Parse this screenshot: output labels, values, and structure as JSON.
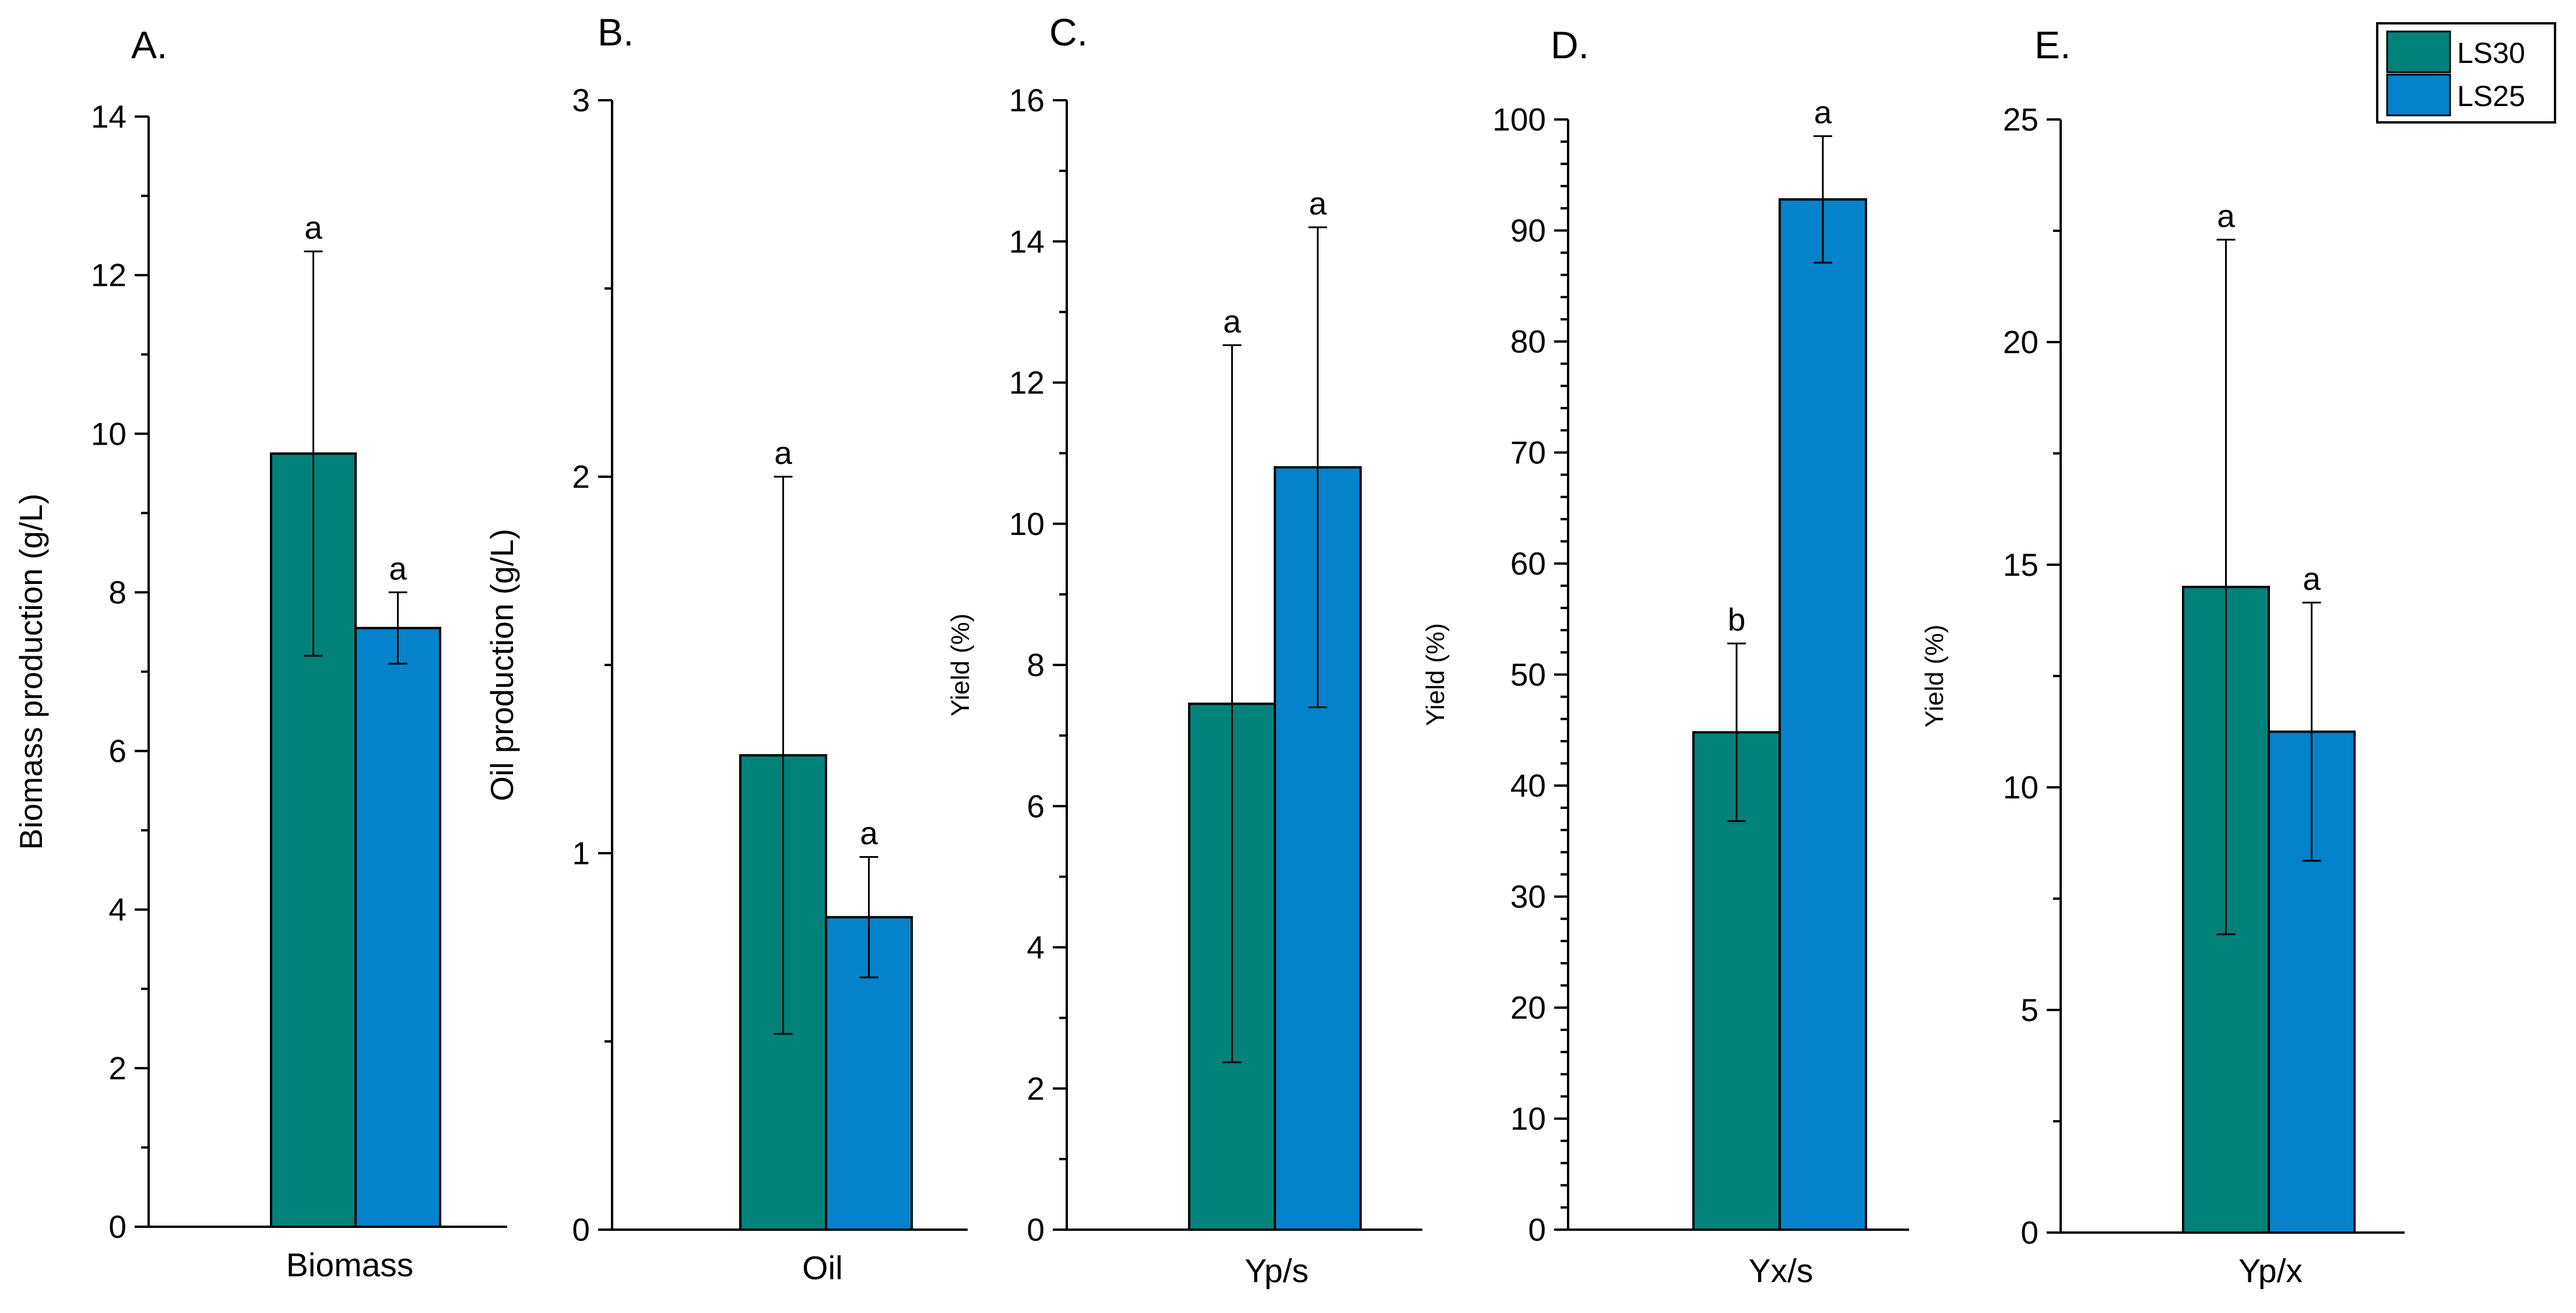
{
  "chart_data": [
    {
      "type": "bar",
      "panel": "A.",
      "categories": [
        "Biomass"
      ],
      "ylabel": "Biomass production (g/L)",
      "ylim": [
        0,
        14
      ],
      "major_ticks": [
        0,
        2,
        4,
        6,
        8,
        10,
        12,
        14
      ],
      "tick_labels": [
        "0",
        "2",
        "4",
        "6",
        "8",
        "10",
        "12",
        "14"
      ],
      "minor_step": 1,
      "series": [
        {
          "name": "LS30",
          "values": [
            9.75
          ],
          "error": [
            2.55
          ],
          "sig": [
            "a"
          ]
        },
        {
          "name": "LS25",
          "values": [
            7.55
          ],
          "error": [
            0.45
          ],
          "sig": [
            "a"
          ]
        }
      ]
    },
    {
      "type": "bar",
      "panel": "B.",
      "categories": [
        "Oil"
      ],
      "ylabel": "Oil production (g/L)",
      "ylim": [
        0,
        3
      ],
      "major_ticks": [
        0,
        1,
        2,
        3
      ],
      "tick_labels": [
        "0",
        "1",
        "2",
        "3"
      ],
      "minor_step": 0.5,
      "series": [
        {
          "name": "LS30",
          "values": [
            1.26
          ],
          "error": [
            0.74
          ],
          "sig": [
            "a"
          ]
        },
        {
          "name": "LS25",
          "values": [
            0.83
          ],
          "error": [
            0.16
          ],
          "sig": [
            "a"
          ]
        }
      ]
    },
    {
      "type": "bar",
      "panel": "C.",
      "categories": [
        "Yp/s"
      ],
      "ylabel": "Yield (%)",
      "ylim": [
        0,
        16
      ],
      "major_ticks": [
        0,
        2,
        4,
        6,
        8,
        10,
        12,
        14,
        16
      ],
      "tick_labels": [
        "0",
        "2",
        "4",
        "6",
        "8",
        "10",
        "12",
        "14",
        "16"
      ],
      "minor_step": 1,
      "series": [
        {
          "name": "LS30",
          "values": [
            7.45
          ],
          "error": [
            5.08
          ],
          "sig": [
            "a"
          ]
        },
        {
          "name": "LS25",
          "values": [
            10.8
          ],
          "error": [
            3.4
          ],
          "sig": [
            "a"
          ]
        }
      ]
    },
    {
      "type": "bar",
      "panel": "D.",
      "categories": [
        "Yx/s"
      ],
      "ylabel": "Yield (%)",
      "ylim": [
        0,
        100
      ],
      "major_ticks": [
        0,
        10,
        20,
        30,
        40,
        50,
        60,
        70,
        80,
        90,
        100
      ],
      "tick_labels": [
        "0",
        "10",
        "20",
        "30",
        "40",
        "50",
        "60",
        "70",
        "80",
        "90",
        "100"
      ],
      "minor_step": 2,
      "series": [
        {
          "name": "LS30",
          "values": [
            44.8
          ],
          "error": [
            8.0
          ],
          "sig": [
            "b"
          ]
        },
        {
          "name": "LS25",
          "values": [
            92.8
          ],
          "error": [
            5.7
          ],
          "sig": [
            "a"
          ]
        }
      ]
    },
    {
      "type": "bar",
      "panel": "E.",
      "categories": [
        "Yp/x"
      ],
      "ylabel": "Yield (%)",
      "ylim": [
        0,
        25
      ],
      "major_ticks": [
        0,
        5,
        10,
        15,
        20,
        25
      ],
      "tick_labels": [
        "0",
        "5",
        "10",
        "15",
        "20",
        "25"
      ],
      "minor_step": 2.5,
      "series": [
        {
          "name": "LS30",
          "values": [
            14.5
          ],
          "error": [
            7.8
          ],
          "sig": [
            "a"
          ]
        },
        {
          "name": "LS25",
          "values": [
            11.25
          ],
          "error": [
            2.9
          ],
          "sig": [
            "a"
          ]
        }
      ]
    }
  ],
  "legend": {
    "position": "top-right",
    "items": [
      {
        "label": "LS30",
        "color": "#00827A"
      },
      {
        "label": "LS25",
        "color": "#0482CB"
      }
    ]
  },
  "colors": {
    "LS30": "#00827A",
    "LS25": "#0482CB",
    "axis": "#000000"
  }
}
